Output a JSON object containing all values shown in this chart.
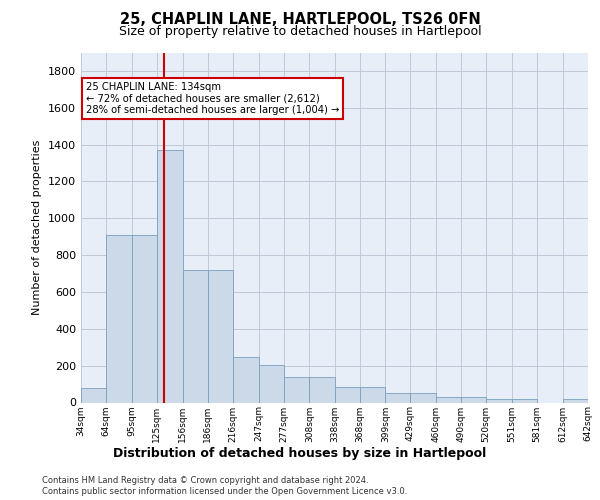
{
  "title1": "25, CHAPLIN LANE, HARTLEPOOL, TS26 0FN",
  "title2": "Size of property relative to detached houses in Hartlepool",
  "xlabel": "Distribution of detached houses by size in Hartlepool",
  "ylabel": "Number of detached properties",
  "footer1": "Contains HM Land Registry data © Crown copyright and database right 2024.",
  "footer2": "Contains public sector information licensed under the Open Government Licence v3.0.",
  "annotation_title": "25 CHAPLIN LANE: 134sqm",
  "annotation_line1": "← 72% of detached houses are smaller (2,612)",
  "annotation_line2": "28% of semi-detached houses are larger (1,004) →",
  "bar_color": "#ccd9e8",
  "bar_edge_color": "#7aa0c0",
  "ref_line_color": "#cc0000",
  "ref_line_x": 134,
  "bin_edges": [
    34,
    64,
    95,
    125,
    156,
    186,
    216,
    247,
    277,
    308,
    338,
    368,
    399,
    429,
    460,
    490,
    520,
    551,
    581,
    612,
    642
  ],
  "heights": [
    80,
    910,
    910,
    1370,
    720,
    720,
    245,
    205,
    140,
    140,
    85,
    85,
    50,
    50,
    30,
    30,
    20,
    20,
    0,
    20
  ],
  "ylim": [
    0,
    1900
  ],
  "yticks": [
    0,
    200,
    400,
    600,
    800,
    1000,
    1200,
    1400,
    1600,
    1800
  ],
  "background_color": "#e8eef8",
  "grid_color": "#c0c8d8"
}
